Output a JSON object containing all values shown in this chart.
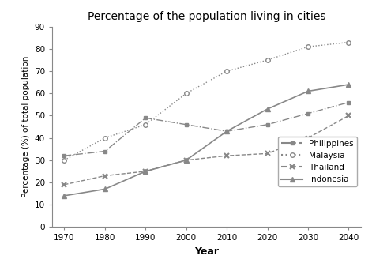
{
  "title": "Percentage of the population living in cities",
  "xlabel": "Year",
  "ylabel": "Percentage (%) of total population",
  "years": [
    1970,
    1980,
    1990,
    2000,
    2010,
    2020,
    2030,
    2040
  ],
  "philippines": [
    32,
    34,
    49,
    46,
    43,
    46,
    51,
    56
  ],
  "malaysia": [
    30,
    40,
    46,
    60,
    70,
    75,
    81,
    83
  ],
  "thailand": [
    19,
    23,
    25,
    30,
    32,
    33,
    40,
    50
  ],
  "indonesia": [
    14,
    17,
    25,
    30,
    43,
    53,
    61,
    64
  ],
  "ylim": [
    0,
    90
  ],
  "yticks": [
    0,
    10,
    20,
    30,
    40,
    50,
    60,
    70,
    80,
    90
  ],
  "line_color": "#888888",
  "background_color": "#ffffff",
  "figsize": [
    4.71,
    3.38
  ],
  "dpi": 100
}
